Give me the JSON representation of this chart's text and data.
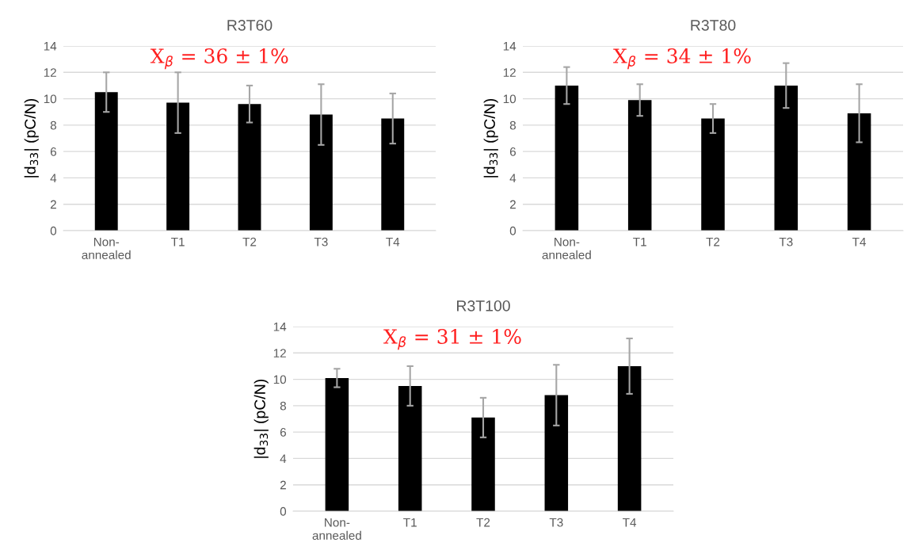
{
  "chart_data": [
    {
      "type": "bar",
      "title": "R3T60",
      "ylabel": "|d$_{33}$| (pC/N)",
      "categories": [
        "Non-\nannealed",
        "T1",
        "T2",
        "T3",
        "T4"
      ],
      "color": "#000000",
      "values": [
        10.5,
        9.7,
        9.6,
        8.8,
        8.5
      ],
      "errors": [
        1.5,
        2.3,
        1.4,
        2.3,
        1.9
      ],
      "ylim": [
        0,
        14
      ],
      "yticks": [
        0,
        2,
        4,
        6,
        8,
        10,
        12,
        14
      ],
      "grid": "y",
      "legend": false,
      "annotations": [
        "X$_{β}$ = 36 ± 1%"
      ]
    },
    {
      "type": "bar",
      "title": "R3T80",
      "ylabel": "|d$_{33}$| (pC/N)",
      "categories": [
        "Non-\nannealed",
        "T1",
        "T2",
        "T3",
        "T4"
      ],
      "color": "#000000",
      "values": [
        11.0,
        9.9,
        8.5,
        11.0,
        8.9
      ],
      "errors": [
        1.4,
        1.2,
        1.1,
        1.7,
        2.2
      ],
      "ylim": [
        0,
        14
      ],
      "yticks": [
        0,
        2,
        4,
        6,
        8,
        10,
        12,
        14
      ],
      "grid": "y",
      "legend": false,
      "annotations": [
        "X$_{β}$ = 34 ± 1%"
      ]
    },
    {
      "type": "bar",
      "title": "R3T100",
      "ylabel": "|d$_{33}$| (pC/N)",
      "categories": [
        "Non-\nannealed",
        "T1",
        "T2",
        "T3",
        "T4"
      ],
      "color": "#000000",
      "values": [
        10.1,
        9.5,
        7.1,
        8.8,
        11.0
      ],
      "errors": [
        0.7,
        1.5,
        1.5,
        2.3,
        2.1
      ],
      "ylim": [
        0,
        14
      ],
      "yticks": [
        0,
        2,
        4,
        6,
        8,
        10,
        12,
        14
      ],
      "grid": "y",
      "legend": false,
      "annotations": [
        "X$_{β}$ = 31 ± 1%"
      ]
    }
  ]
}
